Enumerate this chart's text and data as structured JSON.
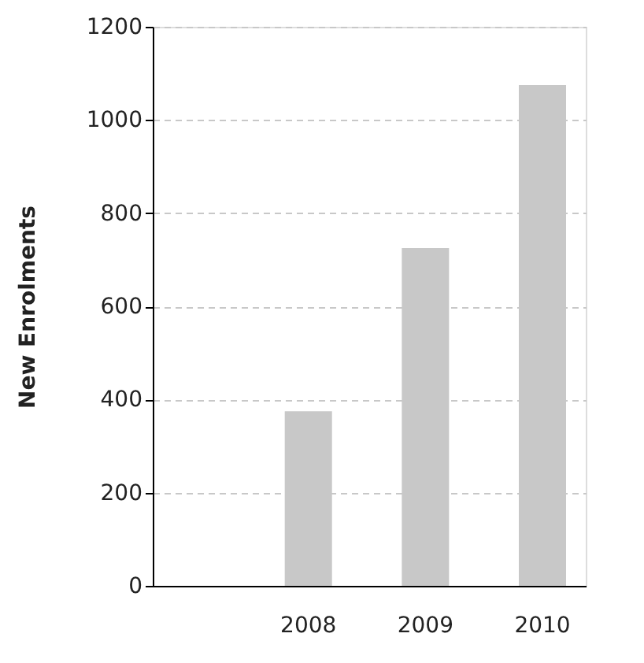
{
  "chart_data": {
    "type": "bar",
    "ylabel": "New Enrolments",
    "categories": [
      "2008",
      "2009",
      "2010"
    ],
    "values": [
      375,
      725,
      1075
    ],
    "color": "#c8c8c8",
    "ylim": [
      0,
      1200
    ],
    "yticks": [
      0,
      200,
      400,
      600,
      800,
      1000,
      1200
    ],
    "grid": "y"
  }
}
